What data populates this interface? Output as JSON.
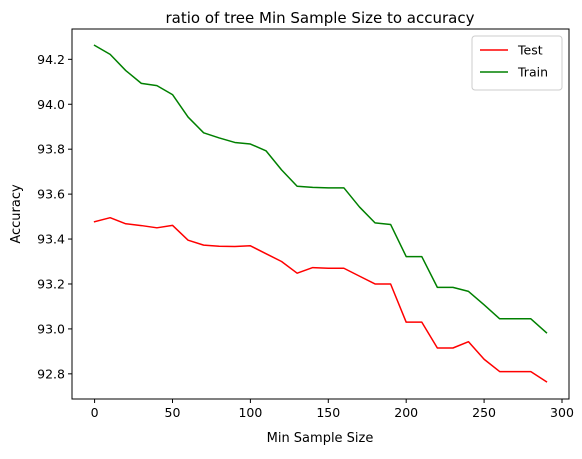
{
  "chart_data": {
    "type": "line",
    "title": "ratio of tree Min Sample Size to accuracy",
    "xlabel": "Min Sample Size",
    "ylabel": "Accuracy",
    "xlim": [
      -14.5,
      304.5
    ],
    "ylim": [
      92.688,
      94.335
    ],
    "xticks": [
      0,
      50,
      100,
      150,
      200,
      250,
      300
    ],
    "yticks": [
      92.8,
      93.0,
      93.2,
      93.4,
      93.6,
      93.8,
      94.0,
      94.2
    ],
    "xtick_labels": [
      "0",
      "50",
      "100",
      "150",
      "200",
      "250",
      "300"
    ],
    "ytick_labels": [
      "92.8",
      "93.0",
      "93.2",
      "93.4",
      "93.6",
      "93.8",
      "94.0",
      "94.2"
    ],
    "grid": false,
    "legend_position": "top-right",
    "x": [
      0,
      10,
      20,
      30,
      40,
      50,
      60,
      70,
      80,
      90,
      100,
      110,
      120,
      130,
      140,
      150,
      160,
      170,
      180,
      190,
      200,
      210,
      220,
      230,
      240,
      250,
      260,
      270,
      280,
      290
    ],
    "series": [
      {
        "name": "Test",
        "color": "#ff0000",
        "values": [
          93.477,
          93.495,
          93.468,
          93.46,
          93.45,
          93.461,
          93.395,
          93.373,
          93.368,
          93.367,
          93.37,
          93.335,
          93.3,
          93.248,
          93.273,
          93.27,
          93.27,
          93.235,
          93.2,
          93.2,
          93.03,
          93.03,
          92.915,
          92.915,
          92.943,
          92.865,
          92.81,
          92.81,
          92.81,
          92.765
        ]
      },
      {
        "name": "Train",
        "color": "#008000",
        "values": [
          94.262,
          94.222,
          94.15,
          94.093,
          94.083,
          94.043,
          93.943,
          93.873,
          93.85,
          93.83,
          93.823,
          93.793,
          93.708,
          93.635,
          93.63,
          93.628,
          93.628,
          93.543,
          93.472,
          93.465,
          93.322,
          93.322,
          93.185,
          93.185,
          93.167,
          93.107,
          93.045,
          93.045,
          93.045,
          92.983
        ]
      }
    ]
  }
}
